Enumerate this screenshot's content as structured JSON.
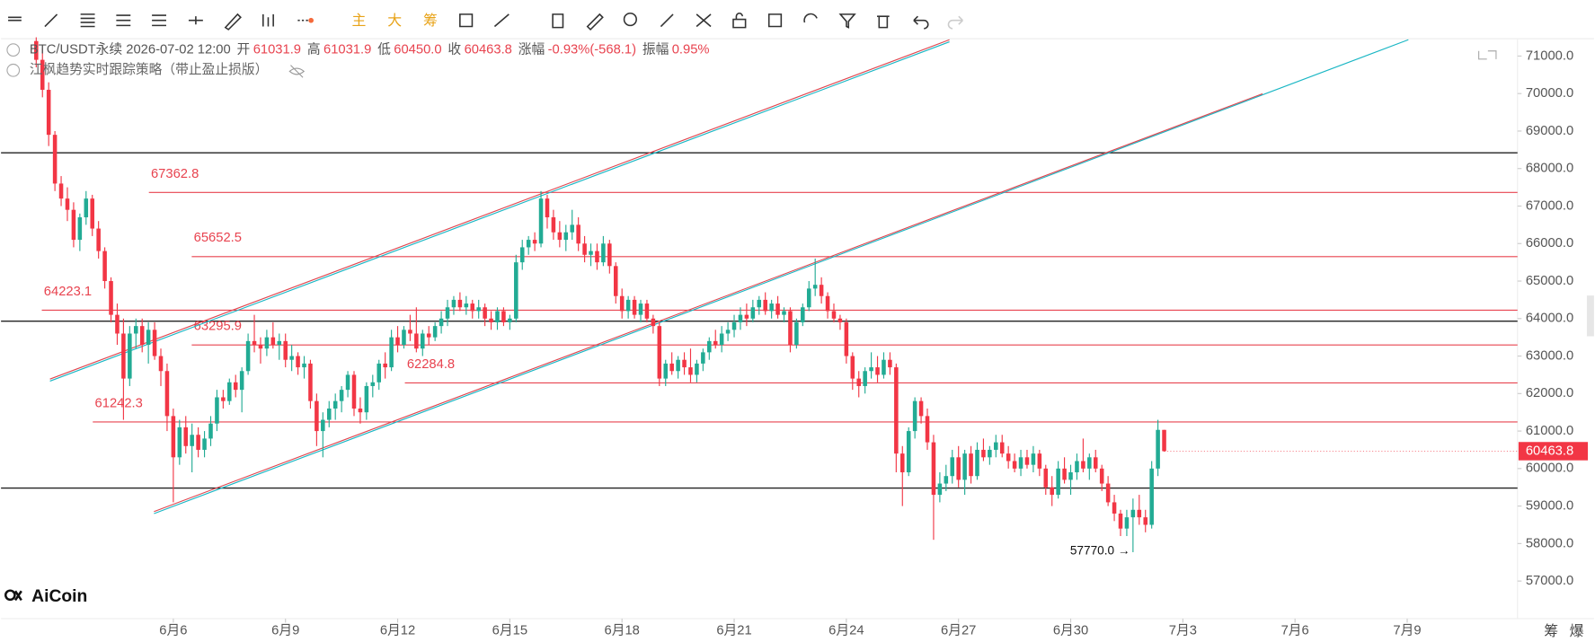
{
  "header": {
    "symbol": "BTC/USDT永续",
    "time": "2026-07-02 12:00",
    "fields": [
      {
        "label": "开",
        "value": "61031.9"
      },
      {
        "label": "高",
        "value": "61031.9"
      },
      {
        "label": "低",
        "value": "60450.0"
      },
      {
        "label": "收",
        "value": "60463.8"
      },
      {
        "label": "涨幅",
        "value": "-0.93%(-568.1)"
      },
      {
        "label": "振幅",
        "value": "0.95%"
      }
    ],
    "strategy": "江枫趋势实时跟踪策略（带止盈止损版）"
  },
  "toolbar": {
    "main": "主",
    "big": "大",
    "chips": "筹"
  },
  "bottom_tabs": [
    "筹",
    "爆"
  ],
  "logo": "AiCoin",
  "chart_data": {
    "type": "candlestick",
    "up_color": "#22ab94",
    "down_color": "#f23645",
    "ylim": [
      56000,
      71408
    ],
    "xlim": [
      -5.65,
      237.7
    ],
    "yticks": [
      {
        "value": 57000,
        "label": "57000.0"
      },
      {
        "value": 58000,
        "label": "58000.0"
      },
      {
        "value": 59000,
        "label": "59000.0"
      },
      {
        "value": 60000,
        "label": "60000.0"
      },
      {
        "value": 61000,
        "label": "61000.0"
      },
      {
        "value": 62000,
        "label": "62000.0"
      },
      {
        "value": 63000,
        "label": "63000.0"
      },
      {
        "value": 64000,
        "label": "64000.0"
      },
      {
        "value": 65000,
        "label": "65000.0"
      },
      {
        "value": 66000,
        "label": "66000.0"
      },
      {
        "value": 67000,
        "label": "67000.0"
      },
      {
        "value": 68000,
        "label": "68000.0"
      },
      {
        "value": 69000,
        "label": "69000.0"
      },
      {
        "value": 70000,
        "label": "70000.0"
      },
      {
        "value": 71000,
        "label": "71000.0"
      }
    ],
    "xticks": [
      {
        "value": 22,
        "label": "6月6"
      },
      {
        "value": 40,
        "label": "6月9"
      },
      {
        "value": 58,
        "label": "6月12"
      },
      {
        "value": 76,
        "label": "6月15"
      },
      {
        "value": 94,
        "label": "6月18"
      },
      {
        "value": 112,
        "label": "6月21"
      },
      {
        "value": 130,
        "label": "6月24"
      },
      {
        "value": 148,
        "label": "6月27"
      },
      {
        "value": 166,
        "label": "6月30"
      },
      {
        "value": 184,
        "label": "7月3"
      },
      {
        "value": 202,
        "label": "7月6"
      },
      {
        "value": 220,
        "label": "7月9"
      }
    ],
    "levels": [
      67362.8,
      65652.5,
      64223.1,
      63295.9,
      62284.8,
      61242.3
    ],
    "lines": [
      68420,
      63930,
      59480
    ],
    "annotation": {
      "label": "57770.0 →"
    },
    "candles": [
      [
        71400,
        71500,
        70700,
        70900
      ],
      [
        70900,
        71200,
        69900,
        70100
      ],
      [
        70100,
        70300,
        68600,
        68900
      ],
      [
        68900,
        69000,
        67400,
        67600
      ],
      [
        67600,
        67800,
        67000,
        67200
      ],
      [
        67200,
        67500,
        66600,
        66900
      ],
      [
        66900,
        67100,
        65900,
        66100
      ],
      [
        66100,
        66800,
        65800,
        66700
      ],
      [
        66700,
        67400,
        66500,
        67200
      ],
      [
        67200,
        67300,
        66200,
        66400
      ],
      [
        66400,
        66600,
        65600,
        65800
      ],
      [
        65800,
        65900,
        64800,
        65000
      ],
      [
        65000,
        65100,
        63900,
        64100
      ],
      [
        64100,
        64400,
        63300,
        63600
      ],
      [
        63600,
        64000,
        61300,
        62400
      ],
      [
        62400,
        63800,
        62200,
        63600
      ],
      [
        63600,
        64000,
        63200,
        63800
      ],
      [
        63800,
        64000,
        63100,
        63300
      ],
      [
        63300,
        63900,
        62800,
        63700
      ],
      [
        63700,
        63900,
        62900,
        63000
      ],
      [
        63000,
        63200,
        62200,
        62600
      ],
      [
        62600,
        62800,
        61000,
        61400
      ],
      [
        61400,
        61600,
        59100,
        60300
      ],
      [
        60300,
        61300,
        60100,
        61100
      ],
      [
        61100,
        61400,
        60400,
        60600
      ],
      [
        60600,
        61200,
        59900,
        60900
      ],
      [
        60900,
        61100,
        60300,
        60500
      ],
      [
        60500,
        61000,
        60300,
        60800
      ],
      [
        60800,
        61400,
        60600,
        61200
      ],
      [
        61200,
        62100,
        61000,
        61900
      ],
      [
        61900,
        62100,
        61600,
        61800
      ],
      [
        61800,
        62400,
        61700,
        62300
      ],
      [
        62300,
        62500,
        61900,
        62100
      ],
      [
        62100,
        62700,
        61500,
        62600
      ],
      [
        62600,
        63600,
        62500,
        63400
      ],
      [
        63400,
        64100,
        63100,
        63300
      ],
      [
        63300,
        63500,
        62800,
        63200
      ],
      [
        63200,
        63700,
        63000,
        63500
      ],
      [
        63500,
        63900,
        63200,
        63300
      ],
      [
        63300,
        63600,
        62900,
        63400
      ],
      [
        63400,
        63600,
        62700,
        62900
      ],
      [
        62900,
        63300,
        62600,
        63000
      ],
      [
        63000,
        63100,
        62500,
        62700
      ],
      [
        62700,
        63000,
        62400,
        62800
      ],
      [
        62800,
        62900,
        61600,
        61800
      ],
      [
        61800,
        62000,
        60600,
        61000
      ],
      [
        61000,
        61500,
        60300,
        61300
      ],
      [
        61300,
        61800,
        61100,
        61600
      ],
      [
        61600,
        62000,
        61300,
        61800
      ],
      [
        61800,
        62200,
        61500,
        62100
      ],
      [
        62100,
        62600,
        61900,
        62500
      ],
      [
        62500,
        62600,
        61400,
        61600
      ],
      [
        61600,
        61900,
        61200,
        61500
      ],
      [
        61500,
        62300,
        61300,
        62200
      ],
      [
        62200,
        62500,
        61900,
        62300
      ],
      [
        62300,
        62900,
        62100,
        62800
      ],
      [
        62800,
        63100,
        62400,
        62700
      ],
      [
        62700,
        63700,
        62600,
        63500
      ],
      [
        63500,
        63800,
        63100,
        63300
      ],
      [
        63300,
        63800,
        63200,
        63700
      ],
      [
        63700,
        64100,
        63400,
        63600
      ],
      [
        63600,
        64300,
        63100,
        63200
      ],
      [
        63200,
        63700,
        63000,
        63600
      ],
      [
        63600,
        63800,
        63300,
        63500
      ],
      [
        63500,
        63900,
        63400,
        63800
      ],
      [
        63800,
        64200,
        63600,
        64000
      ],
      [
        64000,
        64500,
        63800,
        64300
      ],
      [
        64300,
        64600,
        64100,
        64500
      ],
      [
        64500,
        64700,
        64200,
        64300
      ],
      [
        64300,
        64600,
        64100,
        64400
      ],
      [
        64400,
        64500,
        64000,
        64200
      ],
      [
        64200,
        64500,
        64000,
        64300
      ],
      [
        64300,
        64400,
        63800,
        64000
      ],
      [
        64000,
        64200,
        63700,
        63900
      ],
      [
        63900,
        64300,
        63700,
        64200
      ],
      [
        64200,
        64300,
        63800,
        63900
      ],
      [
        63900,
        64100,
        63700,
        64000
      ],
      [
        64000,
        65700,
        63900,
        65500
      ],
      [
        65500,
        66100,
        65300,
        65900
      ],
      [
        65900,
        66200,
        65700,
        66100
      ],
      [
        66100,
        66300,
        65800,
        66000
      ],
      [
        66000,
        67400,
        65900,
        67200
      ],
      [
        67200,
        67300,
        66400,
        66700
      ],
      [
        66700,
        66900,
        66100,
        66300
      ],
      [
        66300,
        66600,
        65900,
        66100
      ],
      [
        66100,
        66500,
        65800,
        66300
      ],
      [
        66300,
        66900,
        66100,
        66500
      ],
      [
        66500,
        66700,
        65800,
        66000
      ],
      [
        66000,
        66200,
        65500,
        65700
      ],
      [
        65700,
        66000,
        65400,
        65800
      ],
      [
        65800,
        66000,
        65300,
        65500
      ],
      [
        65500,
        66200,
        65400,
        66000
      ],
      [
        66000,
        66100,
        65200,
        65400
      ],
      [
        65400,
        65500,
        64400,
        64600
      ],
      [
        64600,
        64800,
        64000,
        64200
      ],
      [
        64200,
        64600,
        64000,
        64500
      ],
      [
        64500,
        64600,
        64000,
        64100
      ],
      [
        64100,
        64500,
        63900,
        64400
      ],
      [
        64400,
        64500,
        63900,
        64000
      ],
      [
        64000,
        64100,
        63600,
        63800
      ],
      [
        63800,
        63900,
        62200,
        62400
      ],
      [
        62400,
        62900,
        62200,
        62800
      ],
      [
        62800,
        63100,
        62500,
        62600
      ],
      [
        62600,
        63000,
        62400,
        62900
      ],
      [
        62900,
        63100,
        62500,
        62700
      ],
      [
        62700,
        63200,
        62300,
        62500
      ],
      [
        62500,
        62900,
        62300,
        62800
      ],
      [
        62800,
        63200,
        62600,
        63100
      ],
      [
        63100,
        63500,
        62900,
        63400
      ],
      [
        63400,
        63700,
        63200,
        63300
      ],
      [
        63300,
        63800,
        63100,
        63600
      ],
      [
        63600,
        63900,
        63400,
        63700
      ],
      [
        63700,
        64100,
        63500,
        63900
      ],
      [
        63900,
        64300,
        63700,
        64100
      ],
      [
        64100,
        64400,
        63800,
        64000
      ],
      [
        64000,
        64500,
        63900,
        64300
      ],
      [
        64300,
        64600,
        64100,
        64500
      ],
      [
        64500,
        64700,
        64100,
        64200
      ],
      [
        64200,
        64500,
        64000,
        64400
      ],
      [
        64400,
        64600,
        64000,
        64100
      ],
      [
        64100,
        64300,
        63900,
        64200
      ],
      [
        64200,
        64300,
        63100,
        63300
      ],
      [
        63300,
        64000,
        63200,
        63900
      ],
      [
        63900,
        64400,
        63800,
        64300
      ],
      [
        64300,
        65000,
        64200,
        64800
      ],
      [
        64800,
        65600,
        64600,
        64900
      ],
      [
        64900,
        65100,
        64400,
        64600
      ],
      [
        64600,
        64700,
        64000,
        64200
      ],
      [
        64200,
        64400,
        63900,
        64000
      ],
      [
        64000,
        64100,
        63700,
        63900
      ],
      [
        63900,
        64000,
        62800,
        63000
      ],
      [
        63000,
        63100,
        62100,
        62400
      ],
      [
        62400,
        62600,
        61900,
        62200
      ],
      [
        62200,
        62700,
        62000,
        62600
      ],
      [
        62600,
        63100,
        62400,
        62700
      ],
      [
        62700,
        63000,
        62300,
        62500
      ],
      [
        62500,
        63100,
        62400,
        62900
      ],
      [
        62900,
        63100,
        62500,
        62700
      ],
      [
        62700,
        62800,
        59900,
        60400
      ],
      [
        60400,
        60600,
        59000,
        59900
      ],
      [
        59900,
        61100,
        59800,
        61000
      ],
      [
        61000,
        61900,
        60800,
        61800
      ],
      [
        61800,
        61900,
        61200,
        61400
      ],
      [
        61400,
        61600,
        60500,
        60700
      ],
      [
        60700,
        60900,
        58100,
        59300
      ],
      [
        59300,
        59900,
        59100,
        59600
      ],
      [
        59600,
        60100,
        59400,
        59800
      ],
      [
        59800,
        60500,
        59600,
        60300
      ],
      [
        60300,
        60600,
        59500,
        59700
      ],
      [
        59700,
        60500,
        59300,
        60400
      ],
      [
        60400,
        60600,
        59600,
        59800
      ],
      [
        59800,
        60700,
        59700,
        60500
      ],
      [
        60500,
        60800,
        60200,
        60300
      ],
      [
        60300,
        60600,
        60100,
        60500
      ],
      [
        60500,
        60900,
        60300,
        60700
      ],
      [
        60700,
        60900,
        60300,
        60400
      ],
      [
        60400,
        60600,
        60000,
        60200
      ],
      [
        60200,
        60400,
        59900,
        60000
      ],
      [
        60000,
        60500,
        59800,
        60300
      ],
      [
        60300,
        60500,
        60000,
        60100
      ],
      [
        60100,
        60600,
        59900,
        60400
      ],
      [
        60400,
        60500,
        59800,
        60000
      ],
      [
        60000,
        60100,
        59300,
        59500
      ],
      [
        59500,
        59800,
        59000,
        59300
      ],
      [
        59300,
        60200,
        59200,
        60000
      ],
      [
        60000,
        60300,
        59600,
        59700
      ],
      [
        59700,
        60100,
        59300,
        59900
      ],
      [
        59900,
        60400,
        59700,
        60200
      ],
      [
        60200,
        60800,
        59900,
        60000
      ],
      [
        60000,
        60400,
        59700,
        60300
      ],
      [
        60300,
        60500,
        59900,
        60000
      ],
      [
        60000,
        60100,
        59400,
        59600
      ],
      [
        59600,
        59800,
        59000,
        59100
      ],
      [
        59100,
        59300,
        58600,
        58800
      ],
      [
        58800,
        58900,
        58200,
        58400
      ],
      [
        58400,
        58900,
        58200,
        58700
      ],
      [
        58700,
        59200,
        57770,
        58900
      ],
      [
        58900,
        59300,
        58500,
        58700
      ],
      [
        58700,
        58900,
        58300,
        58500
      ],
      [
        58500,
        60200,
        58400,
        60000
      ],
      [
        60000,
        61300,
        59800,
        61031.9
      ],
      [
        61031.9,
        61031.9,
        60450,
        60463.8
      ]
    ]
  }
}
